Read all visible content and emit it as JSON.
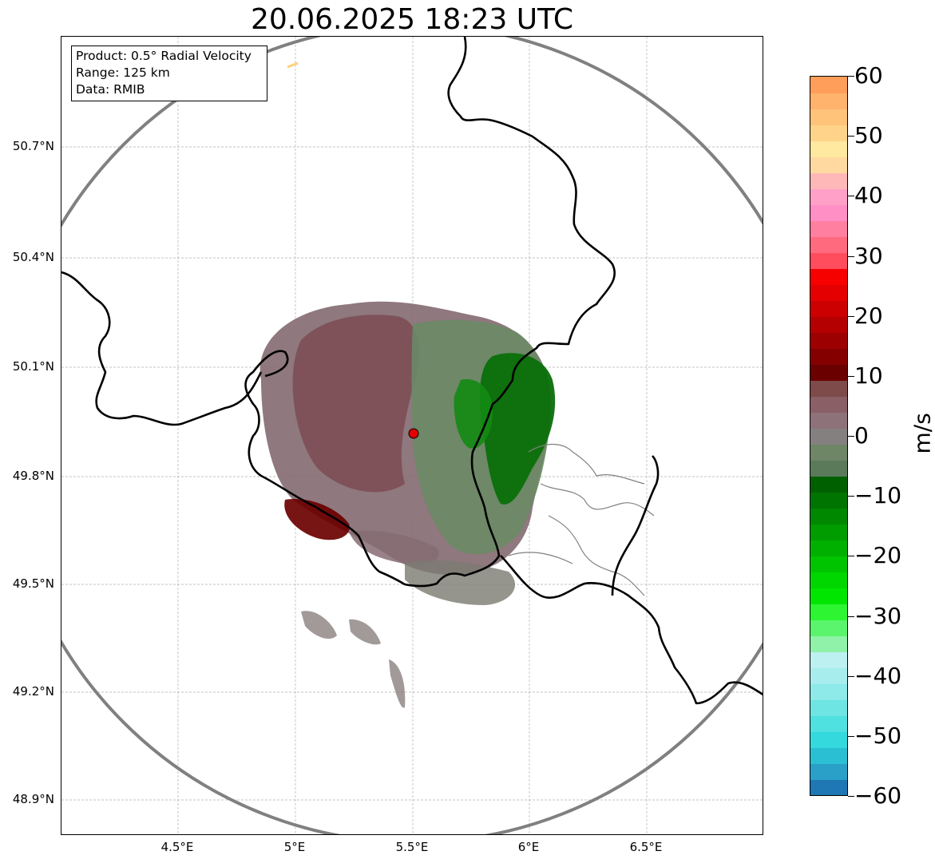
{
  "title": "20.06.2025 18:23 UTC",
  "infobox": {
    "product": "Product: 0.5° Radial Velocity",
    "range": "Range: 125 km",
    "data": "Data: RMIB"
  },
  "axes": {
    "lat_labels": [
      "50.7°N",
      "50.4°N",
      "50.1°N",
      "49.8°N",
      "49.5°N",
      "49.2°N",
      "48.9°N"
    ],
    "lon_labels": [
      "4.5°E",
      "5°E",
      "5.5°E",
      "6°E",
      "6.5°E"
    ]
  },
  "colorbar": {
    "unit": "m/s",
    "min": -60,
    "max": 60,
    "tick_labels": [
      "60",
      "50",
      "40",
      "30",
      "20",
      "10",
      "0",
      "−10",
      "−20",
      "−30",
      "−40",
      "−50",
      "−60"
    ],
    "colors": [
      "#1f77b4",
      "#2a9fc7",
      "#2bbfd4",
      "#33d9dc",
      "#4fe0e0",
      "#6ee5e3",
      "#8ee9e9",
      "#a7eded",
      "#bdf0f0",
      "#8ff2a8",
      "#5af56c",
      "#2df532",
      "#00e600",
      "#00d600",
      "#00c400",
      "#00b000",
      "#009c00",
      "#008800",
      "#007400",
      "#006000",
      "#5a7a5a",
      "#6e8566",
      "#858080",
      "#8e727a",
      "#8a5f66",
      "#7e4a4a",
      "#6b0000",
      "#840000",
      "#9c0000",
      "#b40000",
      "#cc0000",
      "#e40000",
      "#f60000",
      "#ff4d5e",
      "#ff6a7e",
      "#ff7fa0",
      "#ff8fc4",
      "#ffa0c8",
      "#ffb8b8",
      "#ffd9a0",
      "#ffe8a0",
      "#ffd48a",
      "#ffc37a",
      "#ffb36c",
      "#ff9e5a"
    ]
  },
  "chart_data": {
    "type": "map",
    "radar_site": {
      "lon": 5.5,
      "lat": 49.91
    },
    "range_km": 125,
    "lon_range": [
      4.0,
      7.0
    ],
    "lat_range": [
      48.8,
      51.0
    ],
    "grid": true
  }
}
